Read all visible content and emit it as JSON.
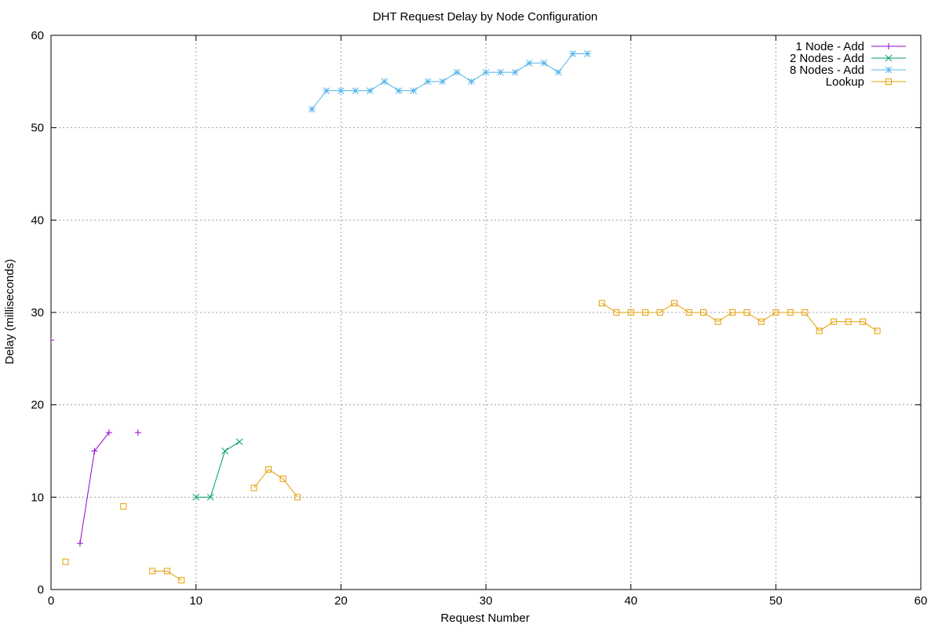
{
  "chart_data": {
    "type": "line",
    "title": "DHT Request Delay by Node Configuration",
    "xlabel": "Request Number",
    "ylabel": "Delay (milliseconds)",
    "xlim": [
      0,
      60
    ],
    "ylim": [
      0,
      60
    ],
    "xticks": [
      0,
      10,
      20,
      30,
      40,
      50,
      60
    ],
    "yticks": [
      0,
      10,
      20,
      30,
      40,
      50,
      60
    ],
    "grid": true,
    "legend_position": "top-right",
    "series": [
      {
        "name": "1 Node - Add",
        "color": "#9400d3",
        "marker": "plus",
        "segments": [
          [
            [
              0,
              27
            ]
          ],
          [
            [
              2,
              5
            ],
            [
              3,
              15
            ],
            [
              4,
              17
            ]
          ],
          [
            [
              6,
              17
            ]
          ]
        ]
      },
      {
        "name": "2 Nodes - Add",
        "color": "#009e73",
        "marker": "cross",
        "segments": [
          [
            [
              10,
              10
            ],
            [
              11,
              10
            ],
            [
              12,
              15
            ],
            [
              13,
              16
            ]
          ]
        ]
      },
      {
        "name": "8 Nodes - Add",
        "color": "#56b4e9",
        "marker": "star",
        "segments": [
          [
            [
              18,
              52
            ],
            [
              19,
              54
            ],
            [
              20,
              54
            ],
            [
              21,
              54
            ],
            [
              22,
              54
            ],
            [
              23,
              55
            ],
            [
              24,
              54
            ],
            [
              25,
              54
            ],
            [
              26,
              55
            ],
            [
              27,
              55
            ],
            [
              28,
              56
            ],
            [
              29,
              55
            ],
            [
              30,
              56
            ],
            [
              31,
              56
            ],
            [
              32,
              56
            ],
            [
              33,
              57
            ],
            [
              34,
              57
            ],
            [
              35,
              56
            ],
            [
              36,
              58
            ],
            [
              37,
              58
            ]
          ]
        ]
      },
      {
        "name": "Lookup",
        "color": "#e69f00",
        "marker": "square",
        "segments": [
          [
            [
              1,
              3
            ]
          ],
          [
            [
              5,
              9
            ]
          ],
          [
            [
              7,
              2
            ],
            [
              8,
              2
            ],
            [
              9,
              1
            ]
          ],
          [
            [
              14,
              11
            ],
            [
              15,
              13
            ],
            [
              16,
              12
            ],
            [
              17,
              10
            ]
          ],
          [
            [
              38,
              31
            ],
            [
              39,
              30
            ],
            [
              40,
              30
            ],
            [
              41,
              30
            ],
            [
              42,
              30
            ],
            [
              43,
              31
            ],
            [
              44,
              30
            ],
            [
              45,
              30
            ],
            [
              46,
              29
            ],
            [
              47,
              30
            ],
            [
              48,
              30
            ],
            [
              49,
              29
            ],
            [
              50,
              30
            ],
            [
              51,
              30
            ],
            [
              52,
              30
            ],
            [
              53,
              28
            ],
            [
              54,
              29
            ],
            [
              55,
              29
            ],
            [
              56,
              29
            ],
            [
              57,
              28
            ]
          ]
        ]
      }
    ]
  }
}
